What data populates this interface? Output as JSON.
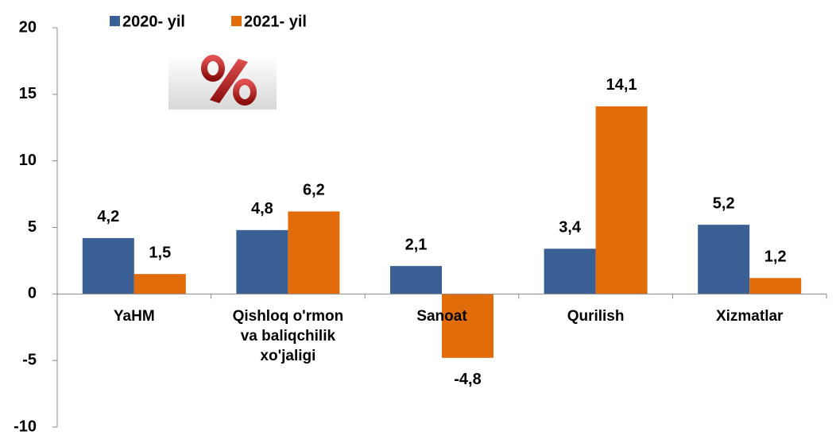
{
  "chart_data": {
    "type": "bar",
    "categories": [
      "YaHM",
      "Qishloq o'rmon\nva baliqchilik\nxo'jaligi",
      "Sanoat",
      "Qurilish",
      "Xizmatlar"
    ],
    "series": [
      {
        "name": "2020- yil",
        "color": "#3a5f95",
        "values": [
          4.2,
          4.8,
          2.1,
          3.4,
          5.2
        ],
        "value_labels": [
          "4,2",
          "4,8",
          "2,1",
          "3,4",
          "5,2"
        ]
      },
      {
        "name": "2021- yil",
        "color": "#e36c0a",
        "values": [
          1.5,
          6.2,
          -4.8,
          14.1,
          1.2
        ],
        "value_labels": [
          "1,5",
          "6,2",
          "-4,8",
          "14,1",
          "1,2"
        ]
      }
    ],
    "ylim": [
      -10,
      20
    ],
    "yticks": [
      -10,
      -5,
      0,
      5,
      10,
      15,
      20
    ],
    "grid": false,
    "legend": "top"
  }
}
